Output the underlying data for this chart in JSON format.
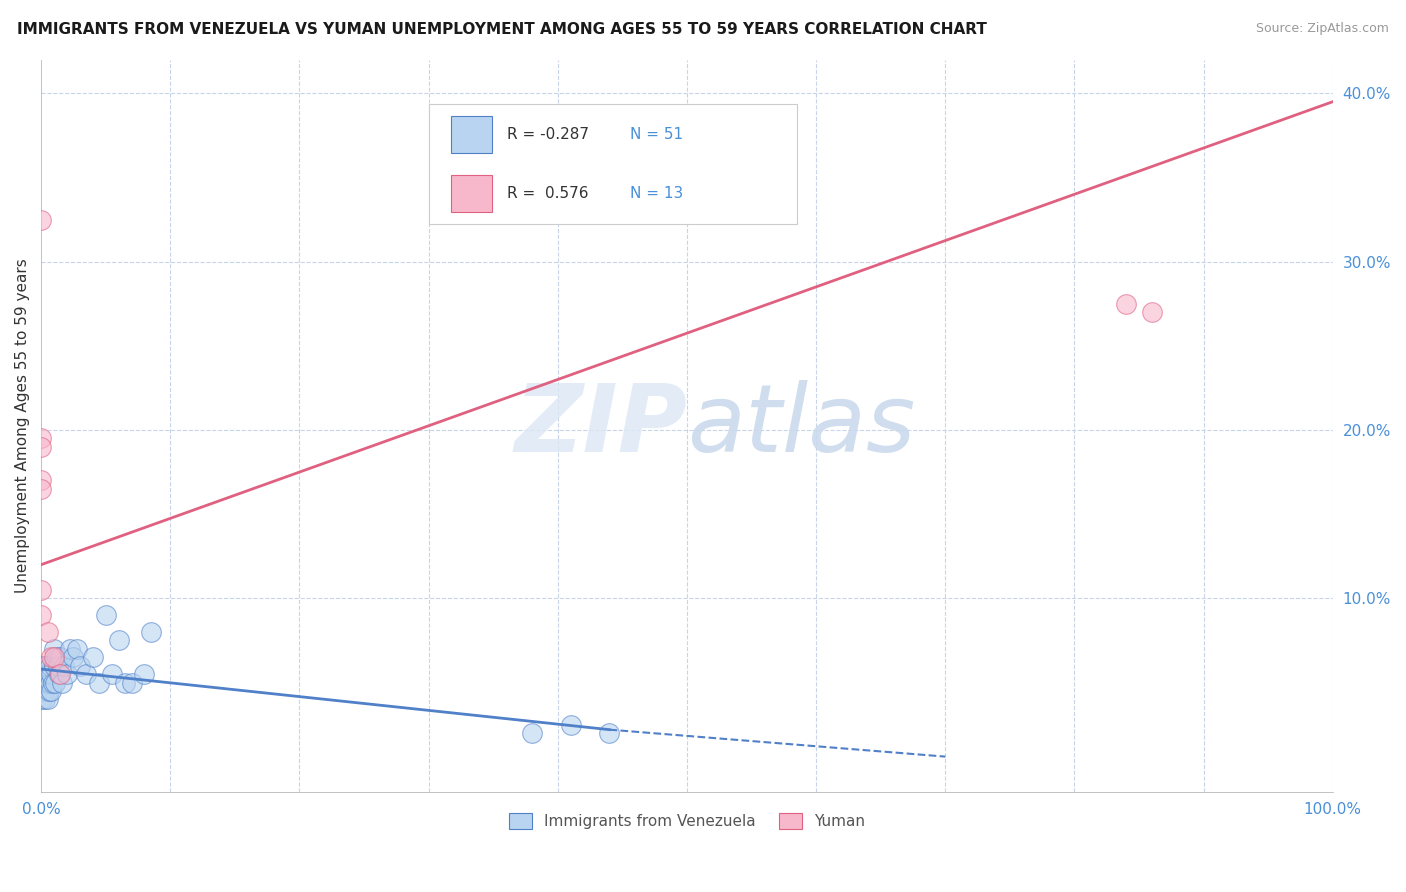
{
  "title": "IMMIGRANTS FROM VENEZUELA VS YUMAN UNEMPLOYMENT AMONG AGES 55 TO 59 YEARS CORRELATION CHART",
  "source": "Source: ZipAtlas.com",
  "ylabel": "Unemployment Among Ages 55 to 59 years",
  "xlim": [
    0,
    1.0
  ],
  "ylim": [
    -0.015,
    0.42
  ],
  "xticks": [
    0.0,
    0.1,
    0.2,
    0.3,
    0.4,
    0.5,
    0.6,
    0.7,
    0.8,
    0.9,
    1.0
  ],
  "xticklabels": [
    "0.0%",
    "",
    "",
    "",
    "",
    "",
    "",
    "",
    "",
    "",
    "100.0%"
  ],
  "yticks": [
    0.0,
    0.1,
    0.2,
    0.3,
    0.4
  ],
  "yticklabels": [
    "",
    "10.0%",
    "20.0%",
    "30.0%",
    "40.0%"
  ],
  "blue_R": -0.287,
  "blue_N": 51,
  "pink_R": 0.576,
  "pink_N": 13,
  "blue_color": "#b8d4f0",
  "blue_edge_color": "#5080c8",
  "pink_color": "#f8b8cc",
  "pink_edge_color": "#e06080",
  "background_color": "#ffffff",
  "grid_color": "#c8d4e8",
  "blue_scatter_x": [
    0.0,
    0.0,
    0.0,
    0.0,
    0.001,
    0.001,
    0.001,
    0.002,
    0.002,
    0.002,
    0.003,
    0.003,
    0.004,
    0.004,
    0.005,
    0.005,
    0.005,
    0.006,
    0.006,
    0.007,
    0.007,
    0.008,
    0.008,
    0.009,
    0.01,
    0.01,
    0.011,
    0.012,
    0.013,
    0.014,
    0.015,
    0.016,
    0.018,
    0.02,
    0.022,
    0.025,
    0.028,
    0.03,
    0.035,
    0.04,
    0.045,
    0.05,
    0.055,
    0.06,
    0.065,
    0.07,
    0.08,
    0.085,
    0.38,
    0.41,
    0.44
  ],
  "blue_scatter_y": [
    0.045,
    0.05,
    0.055,
    0.06,
    0.04,
    0.05,
    0.055,
    0.045,
    0.05,
    0.06,
    0.04,
    0.055,
    0.05,
    0.06,
    0.04,
    0.05,
    0.055,
    0.045,
    0.055,
    0.05,
    0.06,
    0.045,
    0.055,
    0.05,
    0.06,
    0.07,
    0.05,
    0.065,
    0.06,
    0.055,
    0.065,
    0.05,
    0.06,
    0.055,
    0.07,
    0.065,
    0.07,
    0.06,
    0.055,
    0.065,
    0.05,
    0.09,
    0.055,
    0.075,
    0.05,
    0.05,
    0.055,
    0.08,
    0.02,
    0.025,
    0.02
  ],
  "pink_scatter_x": [
    0.0,
    0.0,
    0.0,
    0.0,
    0.0,
    0.0,
    0.0,
    0.005,
    0.008,
    0.01,
    0.015,
    0.84,
    0.86
  ],
  "pink_scatter_y": [
    0.325,
    0.195,
    0.19,
    0.17,
    0.165,
    0.105,
    0.09,
    0.08,
    0.065,
    0.065,
    0.055,
    0.275,
    0.27
  ],
  "blue_trend_x1": 0.0,
  "blue_trend_y1": 0.058,
  "blue_trend_x2": 0.44,
  "blue_trend_y2": 0.022,
  "blue_trend_dash_x1": 0.44,
  "blue_trend_dash_y1": 0.022,
  "blue_trend_dash_x2": 0.7,
  "blue_trend_dash_y2": 0.006,
  "pink_trend_x1": 0.0,
  "pink_trend_y1": 0.12,
  "pink_trend_x2": 1.0,
  "pink_trend_y2": 0.395,
  "watermark_zip": "ZIP",
  "watermark_atlas": "atlas",
  "legend_R_blue_text": "R = -0.287",
  "legend_N_blue_text": "N = 51",
  "legend_R_pink_text": "R =  0.576",
  "legend_N_pink_text": "N = 13"
}
